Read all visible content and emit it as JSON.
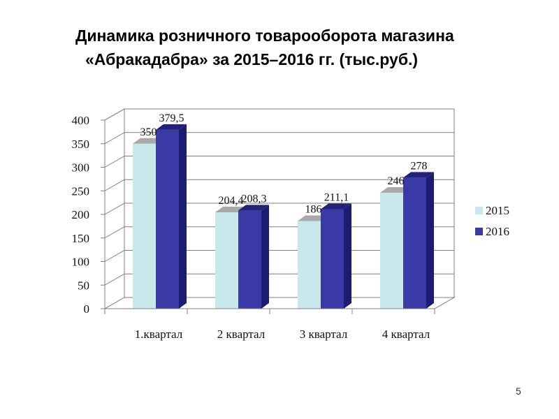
{
  "slide": {
    "title_line1": "Динамика розничного товарооборота  магазина",
    "title_line2": "«Абракадабра»  за  2015–2016 гг. (тыс.руб.)",
    "page_number": "5"
  },
  "chart_data": {
    "type": "bar",
    "title": "Динамика розничного товарооборота  магазина «Абракадабра»  за  2015–2016 гг. (тыс.руб.)",
    "categories": [
      "1.квартал",
      "2 квартал",
      "3 квартал",
      "4 квартал"
    ],
    "series": [
      {
        "name": "2015",
        "values": [
          350,
          204.4,
          186,
          246
        ],
        "labels": [
          "350",
          "204,4",
          "186",
          "246"
        ]
      },
      {
        "name": "2016",
        "values": [
          379.5,
          208.3,
          211.1,
          278
        ],
        "labels": [
          "379,5",
          "208,3",
          "211,1",
          "278"
        ]
      }
    ],
    "ylim": [
      0,
      400
    ],
    "yticks": [
      0,
      50,
      100,
      150,
      200,
      250,
      300,
      350,
      400
    ],
    "grid": true,
    "legend": "right",
    "style": "3d-column",
    "colors": {
      "s2015_front": "#c9e8ec",
      "s2015_side": "#93c5cc",
      "s2015_top": "#a9a9a9",
      "s2016_front": "#3a3aa6",
      "s2016_side": "#1c1c70",
      "s2016_top": "#22227a",
      "grid": "#7f7f7f",
      "wall": "#ffffff"
    }
  }
}
